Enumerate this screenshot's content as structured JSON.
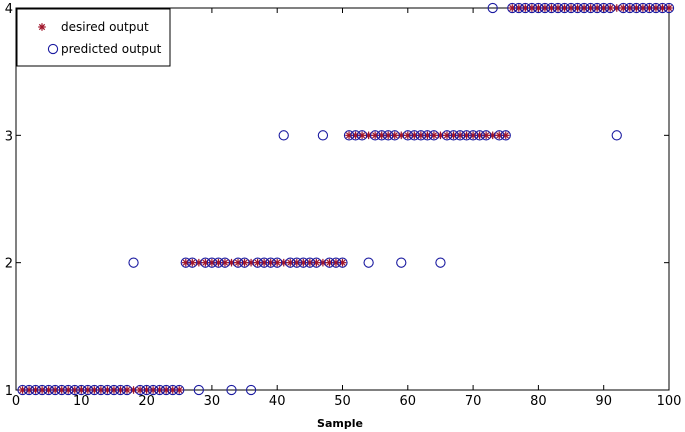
{
  "chart_data": {
    "type": "scatter",
    "title": "",
    "xlabel": "Sample",
    "ylabel": "",
    "xlim": [
      0,
      100
    ],
    "ylim": [
      1,
      4
    ],
    "xticks": [
      0,
      10,
      20,
      30,
      40,
      50,
      60,
      70,
      80,
      90,
      100
    ],
    "yticks": [
      1,
      2,
      3,
      4
    ],
    "grid": false,
    "legend_position": "top-left",
    "series": [
      {
        "name": "desired output",
        "marker": "asterisk",
        "color": "#a0152a",
        "x": [
          1,
          2,
          3,
          4,
          5,
          6,
          7,
          8,
          9,
          10,
          11,
          12,
          13,
          14,
          15,
          16,
          17,
          18,
          19,
          20,
          21,
          22,
          23,
          24,
          25,
          26,
          27,
          28,
          29,
          30,
          31,
          32,
          33,
          34,
          35,
          36,
          37,
          38,
          39,
          40,
          41,
          42,
          43,
          44,
          45,
          46,
          47,
          48,
          49,
          50,
          51,
          52,
          53,
          54,
          55,
          56,
          57,
          58,
          59,
          60,
          61,
          62,
          63,
          64,
          65,
          66,
          67,
          68,
          69,
          70,
          71,
          72,
          73,
          74,
          75,
          76,
          77,
          78,
          79,
          80,
          81,
          82,
          83,
          84,
          85,
          86,
          87,
          88,
          89,
          90,
          91,
          92,
          93,
          94,
          95,
          96,
          97,
          98,
          99,
          100
        ],
        "y": [
          1,
          1,
          1,
          1,
          1,
          1,
          1,
          1,
          1,
          1,
          1,
          1,
          1,
          1,
          1,
          1,
          1,
          1,
          1,
          1,
          1,
          1,
          1,
          1,
          1,
          2,
          2,
          2,
          2,
          2,
          2,
          2,
          2,
          2,
          2,
          2,
          2,
          2,
          2,
          2,
          2,
          2,
          2,
          2,
          2,
          2,
          2,
          2,
          2,
          2,
          3,
          3,
          3,
          3,
          3,
          3,
          3,
          3,
          3,
          3,
          3,
          3,
          3,
          3,
          3,
          3,
          3,
          3,
          3,
          3,
          3,
          3,
          3,
          3,
          3,
          4,
          4,
          4,
          4,
          4,
          4,
          4,
          4,
          4,
          4,
          4,
          4,
          4,
          4,
          4,
          4,
          4,
          4,
          4,
          4,
          4,
          4,
          4,
          4,
          4
        ]
      },
      {
        "name": "predicted output",
        "marker": "circle",
        "color": "#1a1aa0",
        "x": [
          1,
          2,
          3,
          4,
          5,
          6,
          7,
          8,
          9,
          10,
          11,
          12,
          13,
          14,
          15,
          16,
          17,
          18,
          19,
          20,
          21,
          22,
          23,
          24,
          25,
          26,
          27,
          28,
          29,
          30,
          31,
          32,
          33,
          34,
          35,
          36,
          37,
          38,
          39,
          40,
          41,
          42,
          43,
          44,
          45,
          46,
          47,
          48,
          49,
          50,
          51,
          52,
          53,
          54,
          55,
          56,
          57,
          58,
          59,
          60,
          61,
          62,
          63,
          64,
          65,
          66,
          67,
          68,
          69,
          70,
          71,
          72,
          73,
          74,
          75,
          76,
          77,
          78,
          79,
          80,
          81,
          82,
          83,
          84,
          85,
          86,
          87,
          88,
          89,
          90,
          91,
          92,
          93,
          94,
          95,
          96,
          97,
          98,
          99,
          100
        ],
        "y": [
          1,
          1,
          1,
          1,
          1,
          1,
          1,
          1,
          1,
          1,
          1,
          1,
          1,
          1,
          1,
          1,
          1,
          2,
          1,
          1,
          1,
          1,
          1,
          1,
          1,
          2,
          2,
          1,
          2,
          2,
          2,
          2,
          1,
          2,
          2,
          1,
          2,
          2,
          2,
          2,
          3,
          2,
          2,
          2,
          2,
          2,
          3,
          2,
          2,
          2,
          3,
          3,
          3,
          2,
          3,
          3,
          3,
          3,
          2,
          3,
          3,
          3,
          3,
          3,
          2,
          3,
          3,
          3,
          3,
          3,
          3,
          3,
          4,
          3,
          3,
          4,
          4,
          4,
          4,
          4,
          4,
          4,
          4,
          4,
          4,
          4,
          4,
          4,
          4,
          4,
          4,
          3,
          4,
          4,
          4,
          4,
          4,
          4,
          4,
          4
        ]
      }
    ]
  }
}
